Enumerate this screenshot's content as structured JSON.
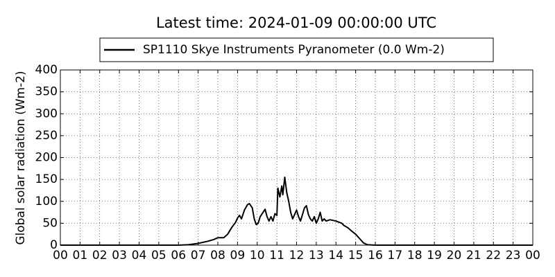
{
  "chart_data": {
    "type": "line",
    "title": "Latest time: 2024-01-09 00:00:00 UTC",
    "y_label": "Global solar radiation (Wm-2)",
    "x": [
      0,
      6,
      6.5,
      7,
      7.5,
      7.8,
      8,
      8.3,
      8.5,
      8.7,
      8.9,
      9.0,
      9.1,
      9.2,
      9.35,
      9.5,
      9.6,
      9.75,
      9.85,
      9.95,
      10.05,
      10.15,
      10.3,
      10.4,
      10.5,
      10.6,
      10.7,
      10.8,
      10.9,
      11.0,
      11.05,
      11.15,
      11.25,
      11.3,
      11.4,
      11.5,
      11.6,
      11.7,
      11.8,
      11.9,
      12.0,
      12.1,
      12.2,
      12.3,
      12.4,
      12.5,
      12.6,
      12.7,
      12.8,
      12.9,
      13.0,
      13.1,
      13.2,
      13.3,
      13.4,
      13.5,
      13.7,
      14.0,
      14.3,
      14.4,
      14.6,
      14.8,
      15.0,
      15.2,
      15.4,
      15.6,
      16.0,
      24
    ],
    "series": [
      {
        "name": "SP1110 Skye Instruments Pyranometer (0.0 Wm-2)",
        "color": "#000000",
        "values": [
          0,
          0,
          1,
          4,
          9,
          13,
          17,
          17,
          25,
          40,
          52,
          62,
          68,
          60,
          80,
          92,
          95,
          85,
          60,
          47,
          50,
          65,
          75,
          82,
          65,
          55,
          65,
          55,
          72,
          68,
          130,
          110,
          135,
          115,
          155,
          120,
          100,
          75,
          60,
          70,
          80,
          65,
          55,
          70,
          85,
          90,
          70,
          60,
          55,
          65,
          50,
          60,
          75,
          55,
          60,
          55,
          58,
          55,
          50,
          45,
          40,
          32,
          25,
          15,
          5,
          1,
          0,
          0
        ]
      }
    ],
    "xlim": [
      0,
      24
    ],
    "xticks": [
      {
        "value": 0,
        "label": "00"
      },
      {
        "value": 1,
        "label": "01"
      },
      {
        "value": 2,
        "label": "02"
      },
      {
        "value": 3,
        "label": "03"
      },
      {
        "value": 4,
        "label": "04"
      },
      {
        "value": 5,
        "label": "05"
      },
      {
        "value": 6,
        "label": "06"
      },
      {
        "value": 7,
        "label": "07"
      },
      {
        "value": 8,
        "label": "08"
      },
      {
        "value": 9,
        "label": "09"
      },
      10,
      11,
      12,
      13,
      14,
      15,
      16,
      17,
      18,
      19,
      20,
      21,
      22,
      23,
      {
        "value": 24,
        "label": "00"
      }
    ],
    "ylim": [
      0,
      400
    ],
    "yticks": [
      0,
      50,
      100,
      150,
      200,
      250,
      300,
      350,
      400
    ],
    "grid": true,
    "legend": "top"
  }
}
